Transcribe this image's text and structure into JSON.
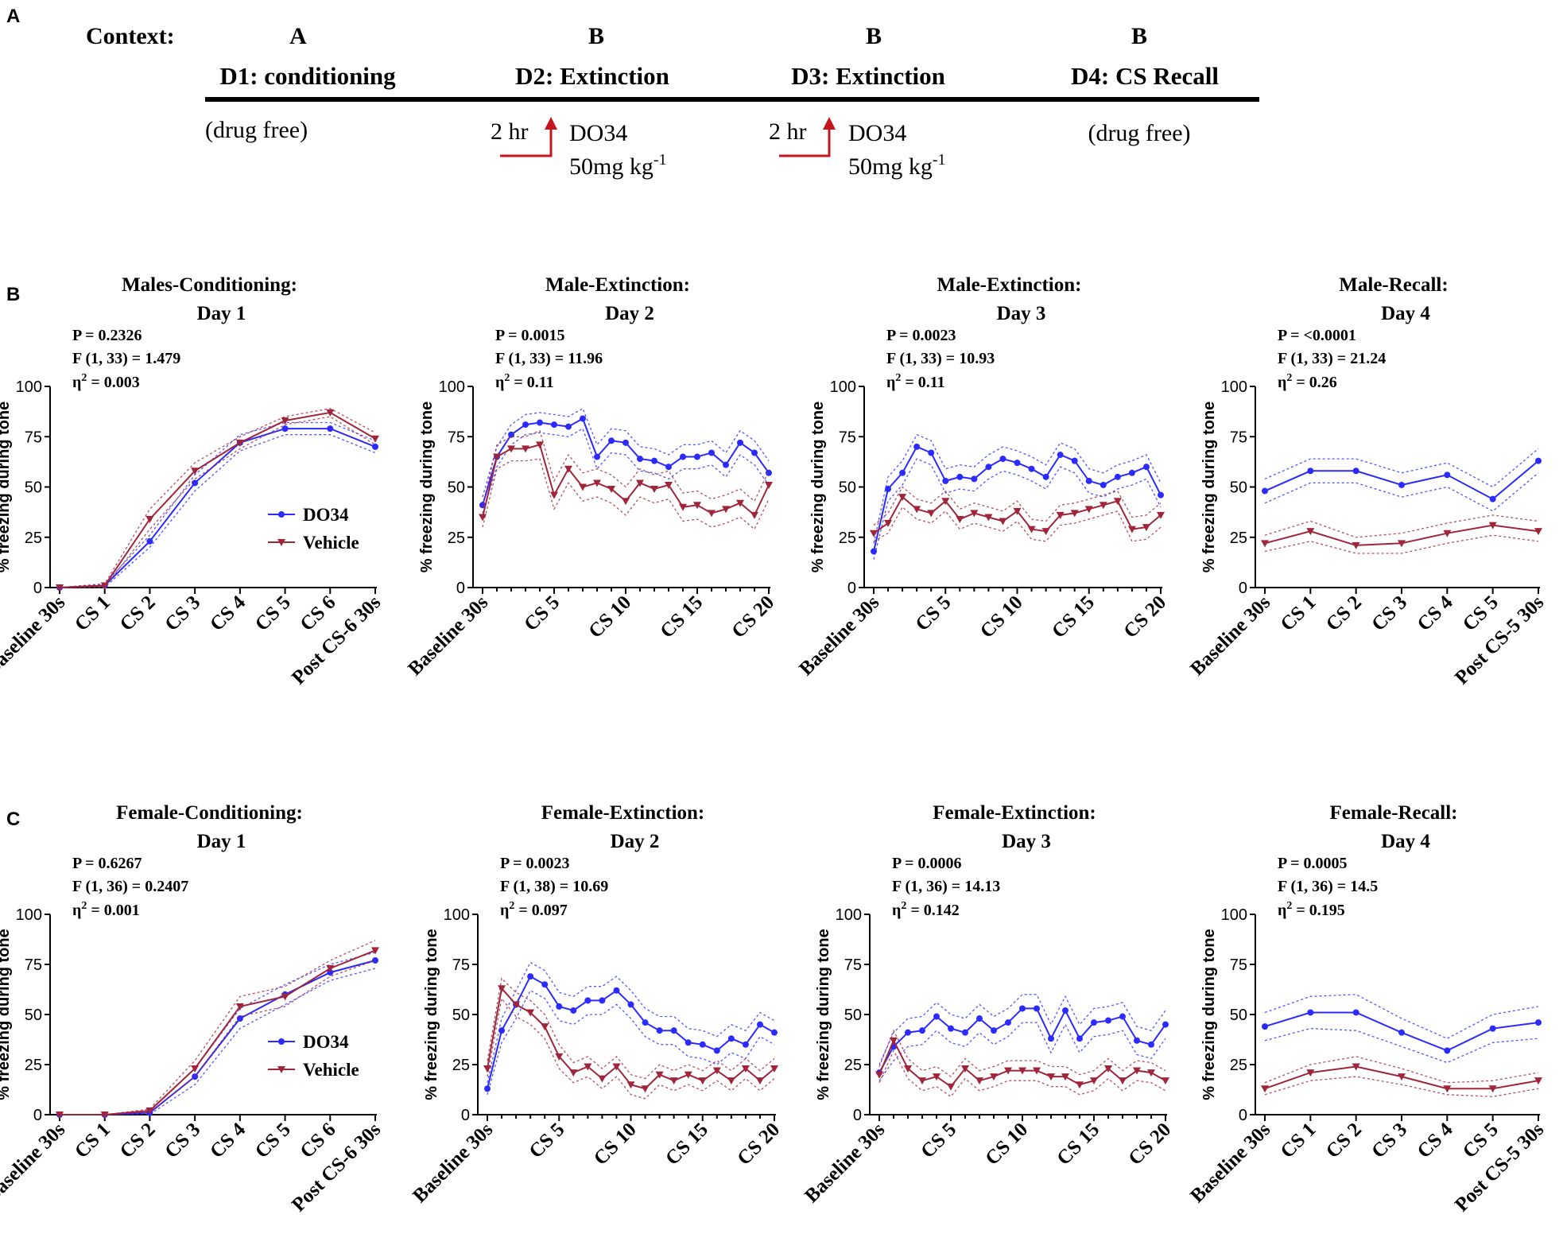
{
  "colors": {
    "do34": "#2b2bff",
    "vehicle": "#a0253a",
    "arrow": "#c4161c",
    "axis": "#000000"
  },
  "panel_a": {
    "label": "A",
    "context_label": "Context:",
    "contexts": [
      "A",
      "B",
      "B",
      "B"
    ],
    "days": [
      "D1: conditioning",
      "D2: Extinction",
      "D3: Extinction",
      "D4: CS Recall"
    ],
    "notes": {
      "d1": "(drug free)",
      "d2_time": "2 hr",
      "d2_drug": "DO34",
      "d2_dose_main": "50mg kg",
      "d2_dose_exp": "-1",
      "d3_time": "2 hr",
      "d3_drug": "DO34",
      "d3_dose_main": "50mg kg",
      "d3_dose_exp": "-1",
      "d4": "(drug free)"
    }
  },
  "row_labels": {
    "b": "B",
    "c": "C"
  },
  "chart_data": [
    {
      "type": "line",
      "panel": "B1",
      "title1": "Males-Conditioning:",
      "title2": "Day 1",
      "stats": {
        "p": "P = 0.2326",
        "f": "F (1, 33) = 1.479",
        "eta_pre": "η",
        "eta_sup": "2",
        "eta_val": " = 0.003"
      },
      "ylabel": "% freezing during tone",
      "ylim": [
        0,
        100
      ],
      "yticks": [
        "0",
        "25",
        "50",
        "75",
        "100"
      ],
      "n": 8,
      "xticks": [
        {
          "i": 0,
          "label": "Baseline 30s"
        },
        {
          "i": 1,
          "label": "CS 1"
        },
        {
          "i": 2,
          "label": "CS 2"
        },
        {
          "i": 3,
          "label": "CS 3"
        },
        {
          "i": 4,
          "label": "CS 4"
        },
        {
          "i": 5,
          "label": "CS 5"
        },
        {
          "i": 6,
          "label": "CS 6"
        },
        {
          "i": 7,
          "label": "Post CS-6 30s"
        }
      ],
      "legend": [
        "DO34",
        "Vehicle"
      ],
      "series": [
        {
          "name": "DO34",
          "values": [
            0,
            1,
            23,
            52,
            72,
            79,
            79,
            70
          ],
          "err": [
            0,
            0.8,
            3,
            4,
            4,
            3,
            3,
            3
          ]
        },
        {
          "name": "Vehicle",
          "values": [
            0,
            1,
            34,
            58,
            72,
            83,
            87,
            74
          ],
          "err": [
            0,
            0.8,
            5,
            4,
            3,
            2,
            2,
            3
          ]
        }
      ]
    },
    {
      "type": "line",
      "panel": "B2",
      "title1": "Male-Extinction:",
      "title2": "Day 2",
      "stats": {
        "p": "P = 0.0015",
        "f": "F (1, 33) = 11.96",
        "eta_pre": "η",
        "eta_sup": "2",
        "eta_val": " = 0.11"
      },
      "ylabel": "% freezing during tone",
      "ylim": [
        0,
        100
      ],
      "yticks": [
        "0",
        "25",
        "50",
        "75",
        "100"
      ],
      "n": 21,
      "xticks": [
        {
          "i": 0,
          "label": "Baseline 30s"
        },
        {
          "i": 5,
          "label": "CS 5"
        },
        {
          "i": 10,
          "label": "CS 10"
        },
        {
          "i": 15,
          "label": "CS 15"
        },
        {
          "i": 20,
          "label": "CS 20"
        }
      ],
      "series": [
        {
          "name": "DO34",
          "values": [
            41,
            65,
            76,
            81,
            82,
            81,
            80,
            84,
            65,
            73,
            72,
            64,
            63,
            60,
            65,
            65,
            67,
            61,
            72,
            67,
            57
          ],
          "err": [
            4,
            5,
            5,
            5,
            5,
            5,
            5,
            5,
            6,
            6,
            6,
            6,
            6,
            6,
            6,
            6,
            6,
            6,
            6,
            6,
            6
          ]
        },
        {
          "name": "Vehicle",
          "values": [
            35,
            65,
            69,
            69,
            71,
            46,
            59,
            50,
            52,
            49,
            43,
            52,
            49,
            51,
            40,
            41,
            37,
            39,
            42,
            36,
            51
          ],
          "err": [
            5,
            6,
            6,
            6,
            7,
            7,
            7,
            7,
            7,
            7,
            7,
            7,
            7,
            7,
            7,
            7,
            7,
            7,
            7,
            7,
            7
          ]
        }
      ]
    },
    {
      "type": "line",
      "panel": "B3",
      "title1": "Male-Extinction:",
      "title2": "Day 3",
      "stats": {
        "p": "P = 0.0023",
        "f": "F (1, 33) = 10.93",
        "eta_pre": "η",
        "eta_sup": "2",
        "eta_val": " = 0.11"
      },
      "ylabel": "% freezing during tone",
      "ylim": [
        0,
        100
      ],
      "yticks": [
        "0",
        "25",
        "50",
        "75",
        "100"
      ],
      "n": 21,
      "xticks": [
        {
          "i": 0,
          "label": "Baseline 30s"
        },
        {
          "i": 5,
          "label": "CS 5"
        },
        {
          "i": 10,
          "label": "CS 10"
        },
        {
          "i": 15,
          "label": "CS 15"
        },
        {
          "i": 20,
          "label": "CS 20"
        }
      ],
      "series": [
        {
          "name": "DO34",
          "values": [
            18,
            49,
            57,
            70,
            67,
            53,
            55,
            54,
            60,
            64,
            62,
            59,
            55,
            66,
            63,
            53,
            51,
            55,
            57,
            60,
            46
          ],
          "err": [
            4,
            6,
            6,
            6,
            6,
            6,
            6,
            6,
            6,
            6,
            6,
            6,
            6,
            6,
            6,
            6,
            6,
            6,
            6,
            6,
            6
          ]
        },
        {
          "name": "Vehicle",
          "values": [
            27,
            32,
            45,
            39,
            37,
            43,
            34,
            37,
            35,
            33,
            38,
            29,
            28,
            36,
            37,
            39,
            41,
            43,
            29,
            30,
            36
          ],
          "err": [
            4,
            5,
            5,
            5,
            5,
            5,
            5,
            5,
            5,
            5,
            5,
            5,
            5,
            5,
            5,
            5,
            5,
            5,
            6,
            6,
            6
          ]
        }
      ]
    },
    {
      "type": "line",
      "panel": "B4",
      "title1": "Male-Recall:",
      "title2": "Day 4",
      "stats": {
        "p": "P = <0.0001",
        "f": "F (1, 33) = 21.24",
        "eta_pre": "η",
        "eta_sup": "2",
        "eta_val": " = 0.26"
      },
      "ylabel": "% freezing during tone",
      "ylim": [
        0,
        100
      ],
      "yticks": [
        "0",
        "25",
        "50",
        "75",
        "100"
      ],
      "n": 7,
      "xticks": [
        {
          "i": 0,
          "label": "Baseline 30s"
        },
        {
          "i": 1,
          "label": "CS 1"
        },
        {
          "i": 2,
          "label": "CS 2"
        },
        {
          "i": 3,
          "label": "CS 3"
        },
        {
          "i": 4,
          "label": "CS 4"
        },
        {
          "i": 5,
          "label": "CS 5"
        },
        {
          "i": 6,
          "label": "Post CS-5 30s"
        }
      ],
      "series": [
        {
          "name": "DO34",
          "values": [
            48,
            58,
            58,
            51,
            56,
            44,
            63
          ],
          "err": [
            6,
            6,
            6,
            6,
            6,
            6,
            6
          ]
        },
        {
          "name": "Vehicle",
          "values": [
            22,
            28,
            21,
            22,
            27,
            31,
            28
          ],
          "err": [
            4,
            5,
            4,
            5,
            5,
            5,
            5
          ]
        }
      ]
    },
    {
      "type": "line",
      "panel": "C1",
      "title1": "Female-Conditioning:",
      "title2": "Day 1",
      "stats": {
        "p": "P = 0.6267",
        "f": "F (1, 36) = 0.2407",
        "eta_pre": "η",
        "eta_sup": "2",
        "eta_val": " = 0.001"
      },
      "ylabel": "% freezing during tone",
      "ylim": [
        0,
        100
      ],
      "yticks": [
        "0",
        "25",
        "50",
        "75",
        "100"
      ],
      "n": 8,
      "xticks": [
        {
          "i": 0,
          "label": "Baseline 30s"
        },
        {
          "i": 1,
          "label": "CS 1"
        },
        {
          "i": 2,
          "label": "CS 2"
        },
        {
          "i": 3,
          "label": "CS 3"
        },
        {
          "i": 4,
          "label": "CS 4"
        },
        {
          "i": 5,
          "label": "CS 5"
        },
        {
          "i": 6,
          "label": "CS 6"
        },
        {
          "i": 7,
          "label": "Post CS-6 30s"
        }
      ],
      "legend": [
        "DO34",
        "Vehicle"
      ],
      "series": [
        {
          "name": "DO34",
          "values": [
            0,
            0,
            1,
            19,
            48,
            60,
            71,
            77
          ],
          "err": [
            0,
            0,
            0.8,
            4,
            5,
            5,
            4,
            4
          ]
        },
        {
          "name": "Vehicle",
          "values": [
            0,
            0,
            2,
            23,
            54,
            59,
            73,
            82
          ],
          "err": [
            0,
            0,
            0.8,
            4,
            5,
            5,
            4,
            5
          ]
        }
      ]
    },
    {
      "type": "line",
      "panel": "C2",
      "title1": "Female-Extinction:",
      "title2": "Day 2",
      "stats": {
        "p": "P = 0.0023",
        "f": "F (1, 38) = 10.69",
        "eta_pre": "η",
        "eta_sup": "2",
        "eta_val": " = 0.097"
      },
      "ylabel": "% freezing during tone",
      "ylim": [
        0,
        100
      ],
      "yticks": [
        "0",
        "25",
        "50",
        "75",
        "100"
      ],
      "n": 21,
      "xticks": [
        {
          "i": 0,
          "label": "Baseline 30s"
        },
        {
          "i": 5,
          "label": "CS 5"
        },
        {
          "i": 10,
          "label": "CS 10"
        },
        {
          "i": 15,
          "label": "CS 15"
        },
        {
          "i": 20,
          "label": "CS 20"
        }
      ],
      "series": [
        {
          "name": "DO34",
          "values": [
            13,
            42,
            55,
            69,
            65,
            54,
            52,
            57,
            57,
            62,
            55,
            46,
            42,
            42,
            36,
            35,
            32,
            38,
            35,
            45,
            41
          ],
          "err": [
            3,
            6,
            7,
            7,
            7,
            7,
            7,
            7,
            7,
            7,
            7,
            7,
            7,
            7,
            7,
            7,
            7,
            7,
            7,
            6,
            6
          ]
        },
        {
          "name": "Vehicle",
          "values": [
            23,
            63,
            55,
            51,
            44,
            29,
            21,
            24,
            18,
            24,
            15,
            13,
            20,
            17,
            20,
            17,
            22,
            17,
            23,
            17,
            23
          ],
          "err": [
            4,
            5,
            6,
            6,
            6,
            6,
            5,
            5,
            5,
            5,
            5,
            5,
            5,
            5,
            5,
            5,
            5,
            5,
            5,
            5,
            5
          ]
        }
      ]
    },
    {
      "type": "line",
      "panel": "C3",
      "title1": "Female-Extinction:",
      "title2": "Day 3",
      "stats": {
        "p": "P = 0.0006",
        "f": "F (1, 36) = 14.13",
        "eta_pre": "η",
        "eta_sup": "2",
        "eta_val": " = 0.142"
      },
      "ylabel": "% freezing during tone",
      "ylim": [
        0,
        100
      ],
      "yticks": [
        "0",
        "25",
        "50",
        "75",
        "100"
      ],
      "n": 21,
      "xticks": [
        {
          "i": 0,
          "label": "Baseline 30s"
        },
        {
          "i": 5,
          "label": "CS 5"
        },
        {
          "i": 10,
          "label": "CS 10"
        },
        {
          "i": 15,
          "label": "CS 15"
        },
        {
          "i": 20,
          "label": "CS 20"
        }
      ],
      "series": [
        {
          "name": "DO34",
          "values": [
            21,
            34,
            41,
            42,
            49,
            43,
            41,
            48,
            42,
            46,
            53,
            53,
            38,
            52,
            38,
            46,
            47,
            49,
            37,
            35,
            45
          ],
          "err": [
            4,
            7,
            7,
            7,
            7,
            7,
            7,
            7,
            7,
            7,
            7,
            7,
            7,
            7,
            7,
            7,
            7,
            7,
            7,
            7,
            7
          ]
        },
        {
          "name": "Vehicle",
          "values": [
            20,
            37,
            23,
            17,
            19,
            14,
            23,
            17,
            19,
            22,
            22,
            22,
            19,
            19,
            15,
            17,
            23,
            17,
            22,
            21,
            17
          ],
          "err": [
            4,
            5,
            5,
            5,
            5,
            5,
            5,
            5,
            5,
            5,
            5,
            5,
            5,
            5,
            5,
            5,
            5,
            5,
            5,
            5,
            5
          ]
        }
      ]
    },
    {
      "type": "line",
      "panel": "C4",
      "title1": "Female-Recall:",
      "title2": "Day 4",
      "stats": {
        "p": "P = 0.0005",
        "f": "F (1, 36) = 14.5",
        "eta_pre": "η",
        "eta_sup": "2",
        "eta_val": " = 0.195"
      },
      "ylabel": "% freezing during tone",
      "ylim": [
        0,
        100
      ],
      "yticks": [
        "0",
        "25",
        "50",
        "75",
        "100"
      ],
      "n": 7,
      "xticks": [
        {
          "i": 0,
          "label": "Baseline 30s"
        },
        {
          "i": 1,
          "label": "CS 1"
        },
        {
          "i": 2,
          "label": "CS 2"
        },
        {
          "i": 3,
          "label": "CS 3"
        },
        {
          "i": 4,
          "label": "CS 4"
        },
        {
          "i": 5,
          "label": "CS 5"
        },
        {
          "i": 6,
          "label": "Post CS-5 30s"
        }
      ],
      "series": [
        {
          "name": "DO34",
          "values": [
            44,
            51,
            51,
            41,
            32,
            43,
            46
          ],
          "err": [
            7,
            8,
            9,
            7,
            6,
            7,
            8
          ]
        },
        {
          "name": "Vehicle",
          "values": [
            13,
            21,
            24,
            19,
            13,
            13,
            17
          ],
          "err": [
            3,
            4,
            5,
            4,
            3,
            4,
            4
          ]
        }
      ]
    }
  ]
}
